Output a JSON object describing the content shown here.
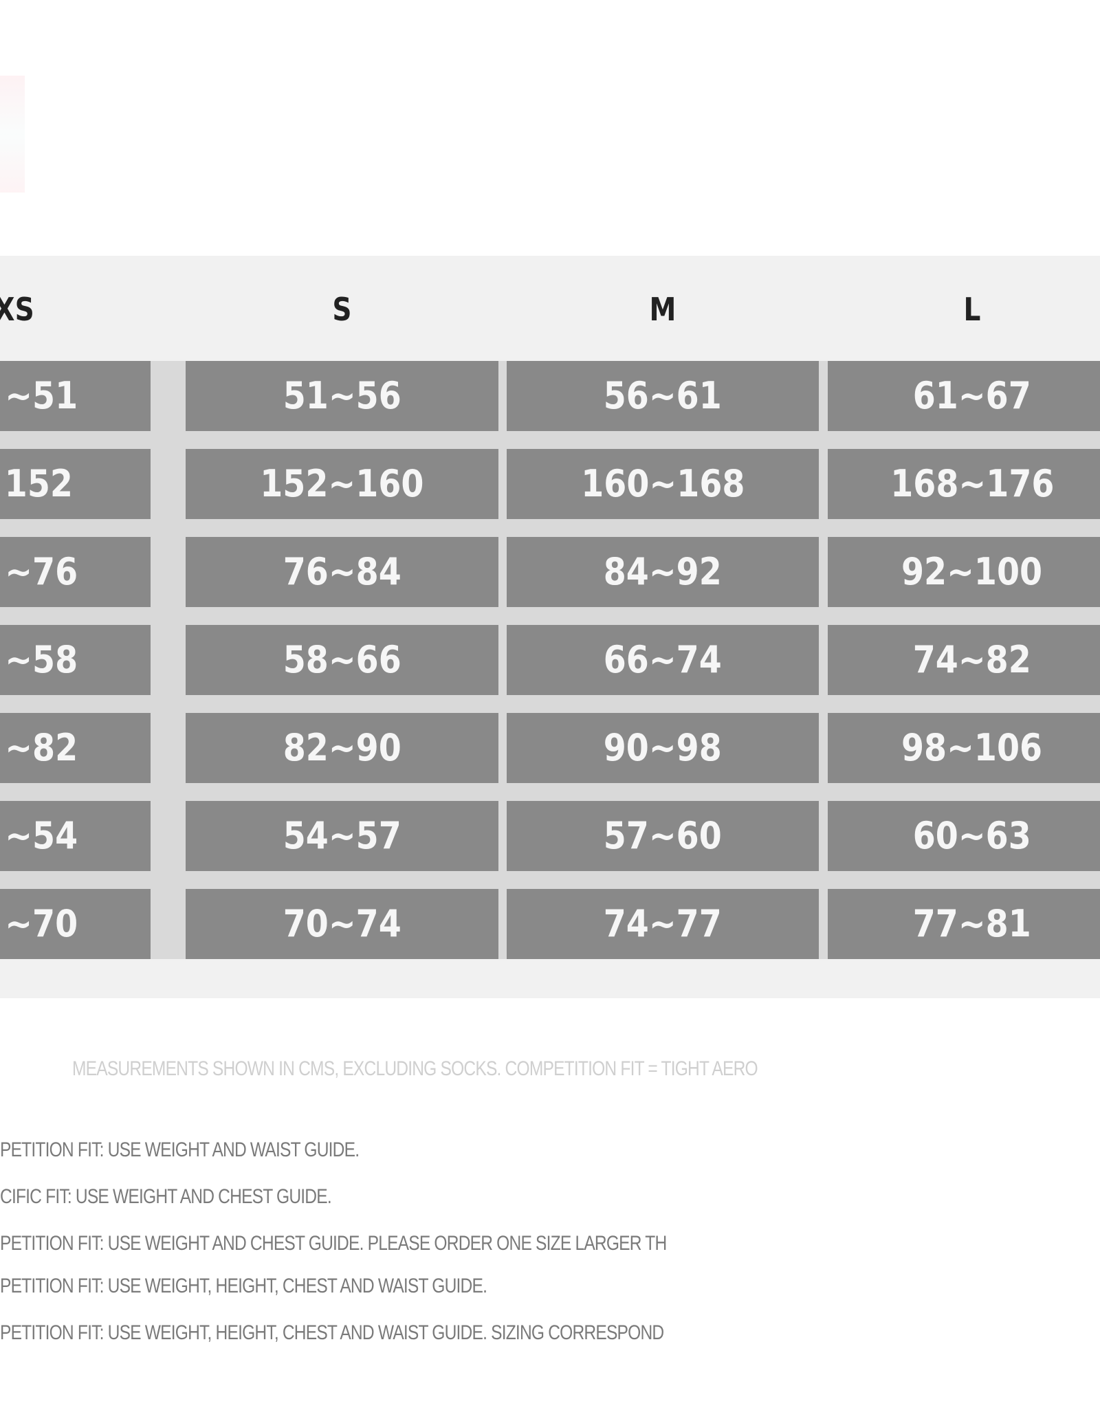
{
  "table": {
    "headers": [
      "XS",
      "S",
      "M",
      "L"
    ],
    "rows": [
      [
        "~51",
        "51~56",
        "56~61",
        "61~67"
      ],
      [
        "152",
        "152~160",
        "160~168",
        "168~176"
      ],
      [
        "~76",
        "76~84",
        "84~92",
        "92~100"
      ],
      [
        "~58",
        "58~66",
        "66~74",
        "74~82"
      ],
      [
        "~82",
        "82~90",
        "90~98",
        "98~106"
      ],
      [
        "~54",
        "54~57",
        "57~60",
        "60~63"
      ],
      [
        "~70",
        "70~74",
        "74~77",
        "77~81"
      ]
    ],
    "colors": {
      "cell": "#898989",
      "header_band": "#f1f1f1",
      "cell_text": "#f6f6f6"
    }
  },
  "notes": {
    "caption": "MEASUREMENTS SHOWN IN CMS, EXCLUDING SOCKS. COMPETITION FIT = TIGHT AERO",
    "lines": [
      "PETITION FIT: USE WEIGHT AND WAIST GUIDE.",
      "CIFIC FIT: USE WEIGHT AND CHEST GUIDE.",
      "PETITION FIT: USE WEIGHT AND CHEST GUIDE. PLEASE ORDER ONE SIZE LARGER TH",
      "PETITION FIT: USE WEIGHT, HEIGHT, CHEST AND WAIST GUIDE.",
      "PETITION FIT: USE WEIGHT, HEIGHT, CHEST AND WAIST GUIDE. SIZING CORRESPOND"
    ]
  }
}
